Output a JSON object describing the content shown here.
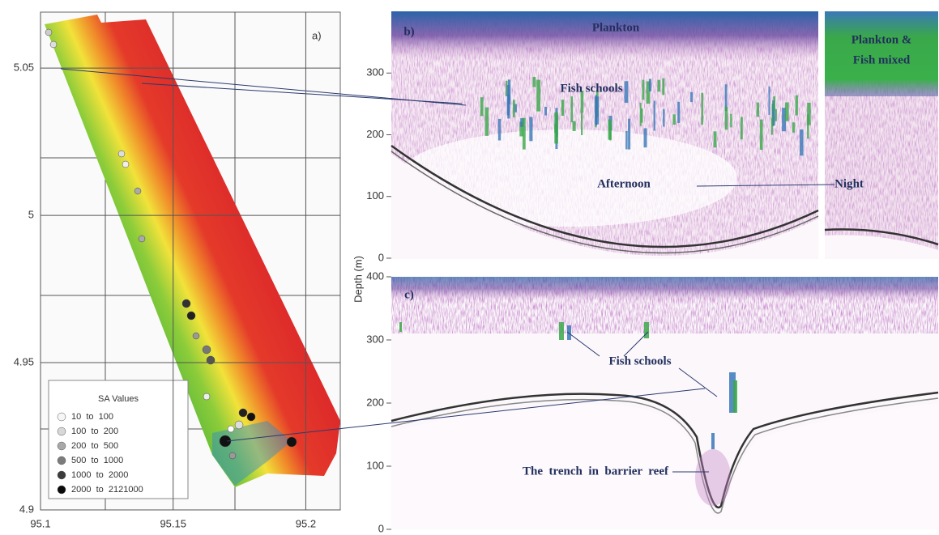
{
  "chart_data": [
    {
      "type": "map",
      "panel_label": "a)",
      "xlim": [
        95.1,
        95.213
      ],
      "ylim": [
        4.9,
        5.069
      ],
      "xticks": [
        95.1,
        95.15,
        95.2
      ],
      "yticks": [
        4.9,
        4.95,
        5,
        5.05
      ],
      "legend_title": "SA Values",
      "series": [
        {
          "name": "10  to  100",
          "color": "#f6f6f6"
        },
        {
          "name": "100  to  200",
          "color": "#d8d8d8"
        },
        {
          "name": "200  to  500",
          "color": "#a8a8a8"
        },
        {
          "name": "500  to  1000",
          "color": "#7c7c7c"
        },
        {
          "name": "1000  to  2000",
          "color": "#3c3c3c"
        },
        {
          "name": "2000  to  2121000",
          "color": "#0a0a0a"
        }
      ]
    },
    {
      "type": "echogram",
      "panel_label": "b)",
      "ylim": [
        0,
        400
      ],
      "yticks": [
        0,
        100,
        200,
        300
      ],
      "annotations": [
        "Plankton",
        "Fish schools",
        "Afternoon",
        "Night",
        "Plankton &",
        "Fish mixed"
      ]
    },
    {
      "type": "echogram",
      "panel_label": "c)",
      "ylabel": "Depth (m)",
      "ylim": [
        0,
        400
      ],
      "yticks": [
        0,
        100,
        200,
        300,
        400
      ],
      "annotations": [
        "Fish schools",
        "The  trench  in  barrier  reef"
      ]
    }
  ]
}
